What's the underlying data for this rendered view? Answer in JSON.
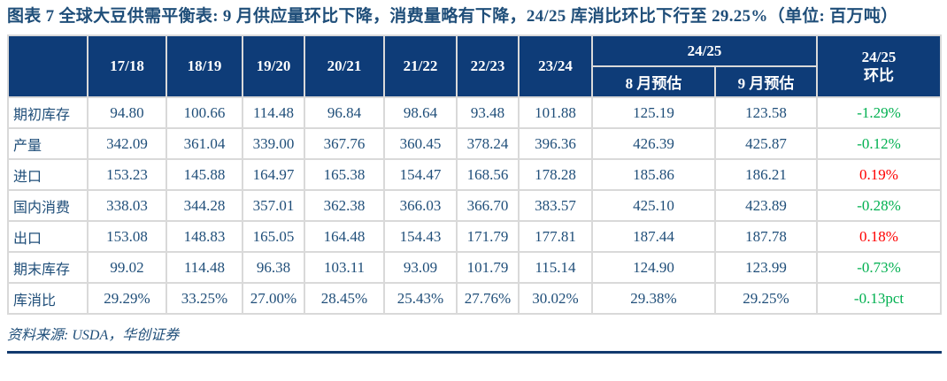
{
  "colors": {
    "header_bg": "#0E3C78",
    "navy_text": "#1F4E79",
    "green": "#00B050",
    "red": "#FF0000",
    "border": "#D9D9D9",
    "bottom_rule": "#123A6E"
  },
  "chart_data": {
    "type": "table",
    "title": "图表 7  全球大豆供需平衡表: 9 月供应量环比下降，消费量略有下降，24/25 库消比环比下行至 29.25%（单位: 百万吨）",
    "year_columns": [
      "17/18",
      "18/19",
      "19/20",
      "20/21",
      "21/22",
      "22/23",
      "23/24"
    ],
    "group_header": {
      "label": "24/25",
      "sub_columns": [
        "8 月预估",
        "9 月预估"
      ]
    },
    "mom_header": {
      "line1": "24/25",
      "line2": "环比"
    },
    "rows": [
      {
        "label": "期初库存",
        "values": [
          "94.80",
          "100.66",
          "114.48",
          "96.84",
          "98.64",
          "93.48",
          "101.88",
          "125.19",
          "123.58"
        ],
        "mom": "-1.29%",
        "mom_color": "green"
      },
      {
        "label": "产量",
        "values": [
          "342.09",
          "361.04",
          "339.00",
          "367.76",
          "360.45",
          "378.24",
          "396.36",
          "426.39",
          "425.87"
        ],
        "mom": "-0.12%",
        "mom_color": "green"
      },
      {
        "label": "进口",
        "values": [
          "153.23",
          "145.88",
          "164.97",
          "165.38",
          "154.47",
          "168.56",
          "178.28",
          "185.86",
          "186.21"
        ],
        "mom": "0.19%",
        "mom_color": "red"
      },
      {
        "label": "国内消费",
        "values": [
          "338.03",
          "344.28",
          "357.01",
          "362.38",
          "366.03",
          "366.70",
          "383.57",
          "425.10",
          "423.89"
        ],
        "mom": "-0.28%",
        "mom_color": "green"
      },
      {
        "label": "出口",
        "values": [
          "153.08",
          "148.83",
          "165.05",
          "164.48",
          "154.43",
          "171.79",
          "177.81",
          "187.44",
          "187.78"
        ],
        "mom": "0.18%",
        "mom_color": "red"
      },
      {
        "label": "期末库存",
        "values": [
          "99.02",
          "114.48",
          "96.38",
          "103.11",
          "93.09",
          "101.79",
          "115.14",
          "124.90",
          "123.99"
        ],
        "mom": "-0.73%",
        "mom_color": "green"
      },
      {
        "label": "库消比",
        "values": [
          "29.29%",
          "33.25%",
          "27.00%",
          "28.45%",
          "25.43%",
          "27.76%",
          "30.02%",
          "29.38%",
          "29.25%"
        ],
        "mom": "-0.13pct",
        "mom_color": "green"
      }
    ],
    "source": "资料来源: USDA，华创证券"
  }
}
